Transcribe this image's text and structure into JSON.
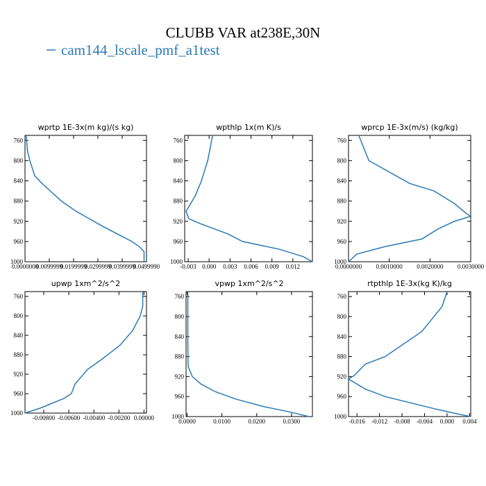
{
  "title": "CLUBB VAR at238E,30N",
  "legend": {
    "name": "cam144_lscale_pmf_a1test",
    "color": "#2a7ab5"
  },
  "chart_data": [
    {
      "type": "line",
      "title": "wprtp  1E-3x(m kg)/(s kg)",
      "color": "#2a7ab5",
      "y": [
        750,
        780,
        800,
        830,
        845,
        880,
        900,
        930,
        950,
        960,
        970,
        980,
        1000
      ],
      "values": [
        0.0005,
        0.001,
        0.002,
        0.004,
        0.007,
        0.015,
        0.021,
        0.032,
        0.04,
        0.044,
        0.047,
        0.049,
        0.049
      ],
      "xlim": [
        0,
        0.05
      ],
      "ylim": [
        1000,
        750
      ],
      "xticks": [
        {
          "value": 0,
          "label": "0.0000000"
        },
        {
          "value": 0.01,
          "label": "0.0099999"
        },
        {
          "value": 0.02,
          "label": "0.0199999"
        },
        {
          "value": 0.03,
          "label": "0.0299999"
        },
        {
          "value": 0.04,
          "label": "0.0399999"
        },
        {
          "value": 0.05,
          "label": "0.0499990"
        }
      ],
      "yticks": [
        760,
        800,
        840,
        880,
        920,
        960,
        1000
      ]
    },
    {
      "type": "line",
      "title": "wpthlp  1x(m K)/s",
      "color": "#2a7ab5",
      "y": [
        750,
        800,
        840,
        870,
        900,
        915,
        925,
        945,
        960,
        975,
        990,
        1000
      ],
      "values": [
        0.0005,
        -0.0002,
        -0.0011,
        -0.002,
        -0.0033,
        -0.0029,
        -0.0012,
        0.0027,
        0.0048,
        0.01,
        0.0135,
        0.0148
      ],
      "xlim": [
        -0.0035,
        0.0148
      ],
      "ylim": [
        1000,
        750
      ],
      "xticks": [
        {
          "value": -0.003,
          "label": "-0.003"
        },
        {
          "value": 0,
          "label": "0.000"
        },
        {
          "value": 0.003,
          "label": "0.003"
        },
        {
          "value": 0.006,
          "label": "0.006"
        },
        {
          "value": 0.009,
          "label": "0.009"
        },
        {
          "value": 0.012,
          "label": "0.012"
        }
      ],
      "yticks": [
        760,
        800,
        840,
        880,
        920,
        960,
        1000
      ]
    },
    {
      "type": "line",
      "title": "wprcp  1E-3x(m/s) (kg/kg)",
      "color": "#2a7ab5",
      "y": [
        750,
        800,
        845,
        860,
        885,
        905,
        910,
        920,
        935,
        955,
        970,
        985,
        1000
      ],
      "values": [
        0.00025,
        0.0005,
        0.0015,
        0.0021,
        0.0026,
        0.0029,
        0.003,
        0.0026,
        0.0022,
        0.0018,
        0.0009,
        0.0002,
        0
      ],
      "xlim": [
        0,
        0.003
      ],
      "ylim": [
        1000,
        750
      ],
      "xticks": [
        {
          "value": 0,
          "label": "0.0000000"
        },
        {
          "value": 0.001,
          "label": "0.0010000"
        },
        {
          "value": 0.002,
          "label": "0.0020000"
        },
        {
          "value": 0.003,
          "label": "0.0030000"
        }
      ],
      "yticks": [
        760,
        800,
        840,
        880,
        920,
        960,
        1000
      ]
    },
    {
      "type": "line",
      "title": "upwp  1xm^2/s^2",
      "color": "#2a7ab5",
      "y": [
        750,
        780,
        800,
        830,
        860,
        890,
        910,
        940,
        960,
        970,
        990,
        1000
      ],
      "values": [
        -0.0001,
        -0.0001,
        -0.0003,
        -0.0009,
        -0.0019,
        -0.0034,
        -0.0045,
        -0.0055,
        -0.0058,
        -0.0064,
        -0.0083,
        -0.0095
      ],
      "xlim": [
        -0.0095,
        0.0002
      ],
      "ylim": [
        1000,
        750
      ],
      "xticks": [
        {
          "value": -0.008,
          "label": "-0.00800"
        },
        {
          "value": -0.006,
          "label": "-0.00600"
        },
        {
          "value": -0.004,
          "label": "-0.00400"
        },
        {
          "value": -0.002,
          "label": "-0.00200"
        },
        {
          "value": 0,
          "label": "0.00000"
        }
      ],
      "yticks": [
        760,
        800,
        840,
        880,
        920,
        960,
        1000
      ]
    },
    {
      "type": "line",
      "title": "vpwp  1xm^2/s^2",
      "color": "#2a7ab5",
      "y": [
        750,
        850,
        900,
        920,
        935,
        950,
        965,
        980,
        990,
        1000
      ],
      "values": [
        0.0002,
        0.0002,
        0.0003,
        0.0015,
        0.004,
        0.008,
        0.014,
        0.022,
        0.029,
        0.035
      ],
      "xlim": [
        -0.0003,
        0.036
      ],
      "ylim": [
        1000,
        750
      ],
      "xticks": [
        {
          "value": 0,
          "label": "0.0000"
        },
        {
          "value": 0.01,
          "label": "0.0100"
        },
        {
          "value": 0.02,
          "label": "0.0200"
        },
        {
          "value": 0.03,
          "label": "0.0300"
        }
      ],
      "yticks": [
        760,
        800,
        840,
        880,
        920,
        960,
        1000
      ]
    },
    {
      "type": "line",
      "title": "rtpthlp  1E-3x(kg K)/kg",
      "color": "#2a7ab5",
      "y": [
        750,
        780,
        830,
        880,
        895,
        918,
        925,
        945,
        960,
        985,
        995,
        1000
      ],
      "values": [
        0,
        -0.0009,
        -0.0045,
        -0.011,
        -0.0145,
        -0.0165,
        -0.0175,
        -0.0145,
        -0.011,
        -0.002,
        0.002,
        0.0042
      ],
      "xlim": [
        -0.0175,
        0.0042
      ],
      "ylim": [
        1000,
        750
      ],
      "xticks": [
        {
          "value": -0.016,
          "label": "-0.016"
        },
        {
          "value": -0.012,
          "label": "-0.012"
        },
        {
          "value": -0.008,
          "label": "-0.008"
        },
        {
          "value": -0.004,
          "label": "-0.004"
        },
        {
          "value": 0,
          "label": "0.000"
        },
        {
          "value": 0.004,
          "label": "0.004"
        }
      ],
      "yticks": [
        760,
        800,
        840,
        880,
        920,
        960,
        1000
      ]
    }
  ]
}
